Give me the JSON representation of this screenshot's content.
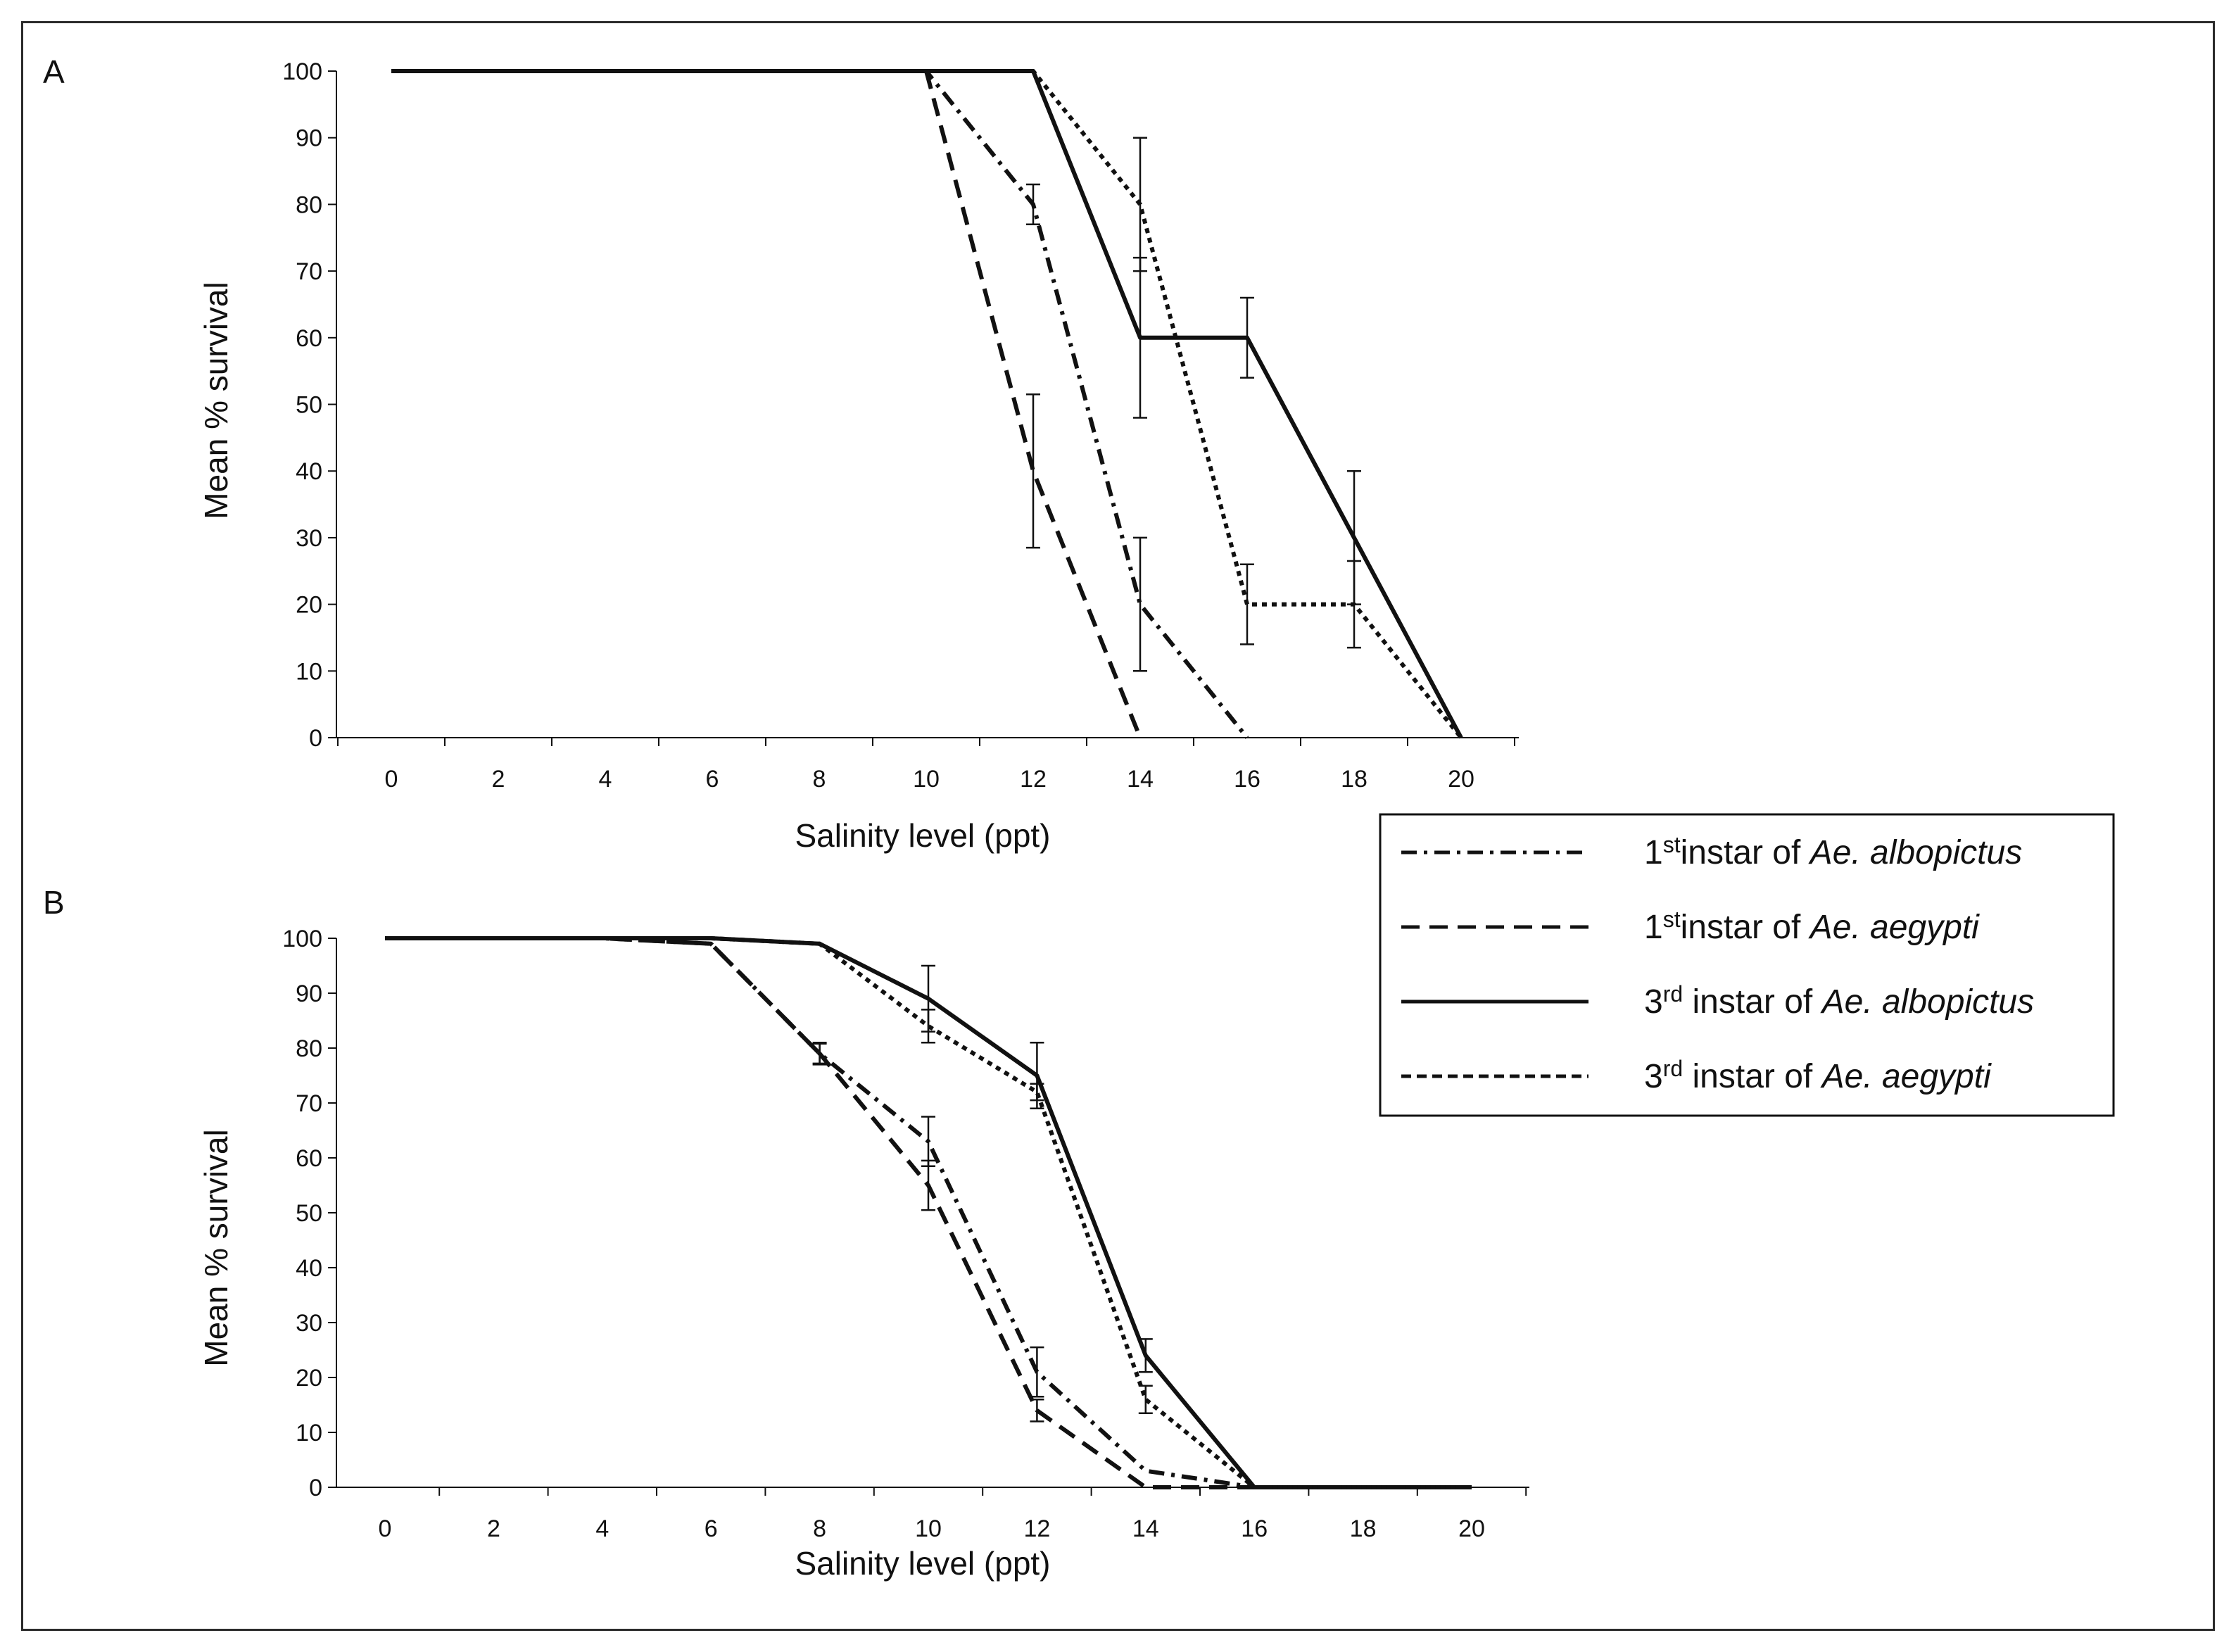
{
  "chart_data": [
    {
      "panel": "A",
      "type": "line",
      "xlabel": "Salinity level (ppt)",
      "ylabel": "Mean % survival",
      "xlim": [
        0,
        20
      ],
      "ylim": [
        0,
        100
      ],
      "x_ticks": [
        "0",
        "2",
        "4",
        "6",
        "8",
        "10",
        "12",
        "14",
        "16",
        "18",
        "20"
      ],
      "y_ticks": [
        "0",
        "10",
        "20",
        "30",
        "40",
        "50",
        "60",
        "70",
        "80",
        "90",
        "100"
      ],
      "grid": false,
      "series": [
        {
          "key": "s1",
          "x": [
            0,
            10,
            12,
            14,
            16
          ],
          "y": [
            100,
            100,
            80,
            20,
            0
          ],
          "err": [
            0,
            0,
            3,
            10,
            0
          ]
        },
        {
          "key": "s2",
          "x": [
            0,
            10,
            12,
            14
          ],
          "y": [
            100,
            100,
            40,
            0
          ],
          "err": [
            0,
            0,
            11.5,
            0
          ]
        },
        {
          "key": "s3",
          "x": [
            0,
            12,
            14,
            16,
            18,
            20
          ],
          "y": [
            100,
            100,
            60,
            60,
            30,
            0
          ],
          "err": [
            0,
            0,
            12,
            6,
            10,
            0
          ]
        },
        {
          "key": "s4",
          "x": [
            0,
            12,
            14,
            16,
            18,
            20
          ],
          "y": [
            100,
            100,
            80,
            20,
            20,
            0
          ],
          "err": [
            0,
            0,
            10,
            6,
            6.5,
            0
          ]
        }
      ]
    },
    {
      "panel": "B",
      "type": "line",
      "xlabel": "Salinity level (ppt)",
      "ylabel": "Mean % survival",
      "xlim": [
        0,
        20
      ],
      "ylim": [
        0,
        100
      ],
      "x_ticks": [
        "0",
        "2",
        "4",
        "6",
        "8",
        "10",
        "12",
        "14",
        "16",
        "18",
        "20"
      ],
      "y_ticks": [
        "0",
        "10",
        "20",
        "30",
        "40",
        "50",
        "60",
        "70",
        "80",
        "90",
        "100"
      ],
      "grid": false,
      "series": [
        {
          "key": "s1",
          "x": [
            0,
            4,
            6,
            8,
            10,
            12,
            14,
            16,
            20
          ],
          "y": [
            100,
            100,
            99,
            79,
            63,
            21,
            3,
            0,
            0
          ],
          "err": [
            0,
            0,
            0,
            2,
            4.5,
            4.5,
            0,
            0,
            0
          ]
        },
        {
          "key": "s2",
          "x": [
            0,
            4,
            6,
            8,
            10,
            12,
            14,
            16,
            20
          ],
          "y": [
            100,
            100,
            99,
            79,
            55,
            14,
            0,
            0,
            0
          ],
          "err": [
            0,
            0,
            0,
            1.8,
            4.5,
            2,
            0,
            0,
            0
          ]
        },
        {
          "key": "s3",
          "x": [
            0,
            6,
            8,
            10,
            12,
            14,
            16,
            20
          ],
          "y": [
            100,
            100,
            99,
            89,
            75,
            24,
            0,
            0
          ],
          "err": [
            0,
            0,
            0,
            6,
            6,
            3,
            0,
            0
          ]
        },
        {
          "key": "s4",
          "x": [
            0,
            6,
            8,
            10,
            12,
            14,
            16,
            20
          ],
          "y": [
            100,
            100,
            99,
            84,
            72,
            16,
            0,
            0
          ],
          "err": [
            0,
            0,
            0,
            3,
            1.5,
            2.5,
            0,
            0
          ]
        }
      ]
    }
  ],
  "legend": {
    "placement": "right, between panels",
    "items": [
      {
        "key": "s1",
        "style": "dash-dot",
        "stage": "1",
        "stage_suffix": "st",
        "text": "instar of ",
        "species": "Ae. albopictus"
      },
      {
        "key": "s2",
        "style": "dashed",
        "stage": "1",
        "stage_suffix": "st",
        "text": "instar of ",
        "species": "Ae. aegypti"
      },
      {
        "key": "s3",
        "style": "solid",
        "stage": "3",
        "stage_suffix": "rd",
        "text": " instar of ",
        "species": "Ae. albopictus"
      },
      {
        "key": "s4",
        "style": "short-dashed",
        "stage": "3",
        "stage_suffix": "rd",
        "text": " instar of ",
        "species": "Ae. aegypti"
      }
    ]
  },
  "colors": {
    "ink": "#111111",
    "frame": "#2b2b2b",
    "background": "#ffffff"
  }
}
